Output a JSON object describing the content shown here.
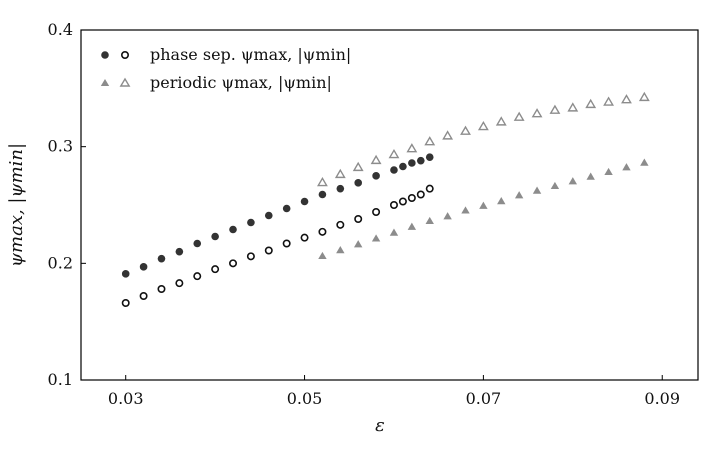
{
  "chart_data": {
    "type": "scatter",
    "xlabel": "ε",
    "ylabel": "ψmax, |ψmin|",
    "xlim": [
      0.025,
      0.094
    ],
    "ylim": [
      0.1,
      0.4
    ],
    "x_ticks": [
      0.03,
      0.05,
      0.07,
      0.09
    ],
    "x_tick_labels": [
      "0.03",
      "0.05",
      "0.07",
      "0.09"
    ],
    "y_ticks": [
      0.1,
      0.2,
      0.3,
      0.4
    ],
    "y_tick_labels": [
      "0.1",
      "0.2",
      "0.3",
      "0.4"
    ],
    "grid": false,
    "legend_position": "top-left",
    "legend": [
      {
        "label": "phase sep. ψmax, |ψmin|",
        "markers": [
          "filled-circle",
          "open-circle"
        ],
        "color": "#333333"
      },
      {
        "label": "periodic ψmax, |ψmin|",
        "markers": [
          "filled-triangle",
          "open-triangle"
        ],
        "color": "#8c8c8c"
      }
    ],
    "series": [
      {
        "group": "phase sep.",
        "quantity": "ψmax",
        "marker": "filled-circle",
        "color": "#333333",
        "x": [
          0.03,
          0.032,
          0.034,
          0.036,
          0.038,
          0.04,
          0.042,
          0.044,
          0.046,
          0.048,
          0.05,
          0.052,
          0.054,
          0.056,
          0.058,
          0.06,
          0.061,
          0.062,
          0.063,
          0.064
        ],
        "y": [
          0.191,
          0.197,
          0.204,
          0.21,
          0.217,
          0.223,
          0.229,
          0.235,
          0.241,
          0.247,
          0.253,
          0.259,
          0.264,
          0.269,
          0.275,
          0.28,
          0.283,
          0.286,
          0.288,
          0.291
        ]
      },
      {
        "group": "phase sep.",
        "quantity": "|ψmin|",
        "marker": "open-circle",
        "color": "#111111",
        "x": [
          0.03,
          0.032,
          0.034,
          0.036,
          0.038,
          0.04,
          0.042,
          0.044,
          0.046,
          0.048,
          0.05,
          0.052,
          0.054,
          0.056,
          0.058,
          0.06,
          0.061,
          0.062,
          0.063,
          0.064
        ],
        "y": [
          0.166,
          0.172,
          0.178,
          0.183,
          0.189,
          0.195,
          0.2,
          0.206,
          0.211,
          0.217,
          0.222,
          0.227,
          0.233,
          0.238,
          0.244,
          0.25,
          0.253,
          0.256,
          0.259,
          0.264
        ]
      },
      {
        "group": "periodic",
        "quantity": "ψmax",
        "marker": "open-triangle",
        "color": "#8c8c8c",
        "x": [
          0.052,
          0.054,
          0.056,
          0.058,
          0.06,
          0.062,
          0.064,
          0.066,
          0.068,
          0.07,
          0.072,
          0.074,
          0.076,
          0.078,
          0.08,
          0.082,
          0.084,
          0.086,
          0.088
        ],
        "y": [
          0.269,
          0.276,
          0.282,
          0.288,
          0.293,
          0.298,
          0.304,
          0.309,
          0.313,
          0.317,
          0.321,
          0.325,
          0.328,
          0.331,
          0.333,
          0.336,
          0.338,
          0.34,
          0.342
        ]
      },
      {
        "group": "periodic",
        "quantity": "|ψmin|",
        "marker": "filled-triangle",
        "color": "#8c8c8c",
        "x": [
          0.052,
          0.054,
          0.056,
          0.058,
          0.06,
          0.062,
          0.064,
          0.066,
          0.068,
          0.07,
          0.072,
          0.074,
          0.076,
          0.078,
          0.08,
          0.082,
          0.084,
          0.086,
          0.088
        ],
        "y": [
          0.206,
          0.211,
          0.216,
          0.221,
          0.226,
          0.231,
          0.236,
          0.24,
          0.245,
          0.249,
          0.253,
          0.258,
          0.262,
          0.266,
          0.27,
          0.274,
          0.278,
          0.282,
          0.286
        ]
      }
    ]
  }
}
